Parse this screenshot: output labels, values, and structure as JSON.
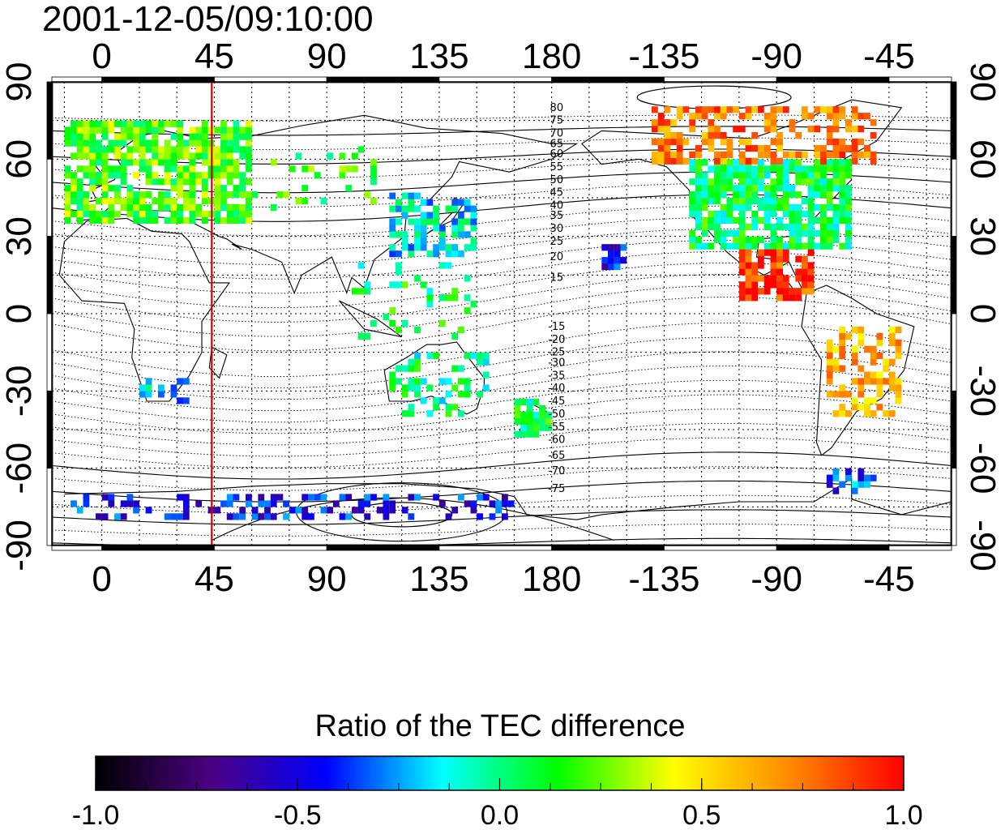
{
  "timestamp": "2001-12-05/09:10:00",
  "colorbar": {
    "title": "Ratio of the TEC difference",
    "range": [
      -1.0,
      1.0
    ],
    "tick_labels": [
      "-1.0",
      "-0.5",
      "0.0",
      "0.5",
      "1.0"
    ],
    "tick_values": [
      -1.0,
      -0.5,
      0.0,
      0.5,
      1.0
    ],
    "colors": [
      "#000000",
      "#4b0082",
      "#0000ff",
      "#00ffff",
      "#00ff00",
      "#ffff00",
      "#ff8c00",
      "#ff0000"
    ]
  },
  "map": {
    "lon_labels": [
      "0",
      "45",
      "90",
      "135",
      "180",
      "-135",
      "-90",
      "-45"
    ],
    "lon_values": [
      0,
      45,
      90,
      135,
      180,
      225,
      270,
      315
    ],
    "lon_range": [
      -20,
      340
    ],
    "lat_labels_left": [
      "90",
      "60",
      "30",
      "0",
      "-30",
      "-60",
      "-90"
    ],
    "lat_labels_right": [
      "90",
      "60",
      "30",
      "0",
      "-30",
      "-60",
      "-90"
    ],
    "lat_values": [
      90,
      60,
      30,
      0,
      -30,
      -60,
      -90
    ],
    "meridian_line": {
      "lon": 44,
      "color": "#cc0000"
    },
    "contour_labels_north": [
      "80",
      "75",
      "70",
      "65",
      "60",
      "55",
      "50",
      "45",
      "40",
      "35",
      "30",
      "25",
      "20",
      "15"
    ],
    "contour_labels_south": [
      "-15",
      "-20",
      "-25",
      "-30",
      "-35",
      "-40",
      "-45",
      "-50",
      "-55",
      "-60",
      "-65",
      "-70",
      "-75"
    ],
    "contour_label_lon": 182,
    "contour_label_lat_north": [
      80,
      75,
      70,
      66,
      62,
      57,
      52,
      47,
      42,
      38,
      33,
      28,
      22,
      14
    ],
    "contour_label_lat_south": [
      -5,
      -10,
      -15,
      -19,
      -24,
      -29,
      -34,
      -39,
      -44,
      -49,
      -55,
      -61,
      -68
    ],
    "data_regions": [
      {
        "name": "europe",
        "lon": [
          -15,
          60
        ],
        "lat": [
          35,
          75
        ],
        "value": 0.2,
        "density": 0.75
      },
      {
        "name": "north-america",
        "lon": [
          235,
          300
        ],
        "lat": [
          25,
          60
        ],
        "value": 0.05,
        "density": 0.8
      },
      {
        "name": "canada-arctic",
        "lon": [
          220,
          310
        ],
        "lat": [
          58,
          80
        ],
        "value": 0.75,
        "density": 0.5
      },
      {
        "name": "central-america",
        "lon": [
          255,
          285
        ],
        "lat": [
          5,
          25
        ],
        "value": 0.9,
        "density": 0.7
      },
      {
        "name": "east-asia",
        "lon": [
          115,
          150
        ],
        "lat": [
          22,
          45
        ],
        "value": -0.15,
        "density": 0.6
      },
      {
        "name": "south-america",
        "lon": [
          290,
          320
        ],
        "lat": [
          -40,
          -5
        ],
        "value": 0.6,
        "density": 0.5
      },
      {
        "name": "australia",
        "lon": [
          115,
          155
        ],
        "lat": [
          -40,
          -15
        ],
        "value": 0.0,
        "density": 0.4
      },
      {
        "name": "new-zealand",
        "lon": [
          165,
          180
        ],
        "lat": [
          -48,
          -35
        ],
        "value": 0.05,
        "density": 0.7
      },
      {
        "name": "antarctic-coast",
        "lon": [
          -15,
          170
        ],
        "lat": [
          -80,
          -70
        ],
        "value": -0.45,
        "density": 0.35
      },
      {
        "name": "pacific-patch",
        "lon": [
          200,
          210
        ],
        "lat": [
          17,
          25
        ],
        "value": -0.45,
        "density": 0.8
      },
      {
        "name": "southeast-asia",
        "lon": [
          100,
          150
        ],
        "lat": [
          -10,
          20
        ],
        "value": 0.05,
        "density": 0.15
      },
      {
        "name": "central-asia",
        "lon": [
          60,
          110
        ],
        "lat": [
          40,
          65
        ],
        "value": 0.15,
        "density": 0.15
      },
      {
        "name": "southern-africa",
        "lon": [
          15,
          35
        ],
        "lat": [
          -35,
          -25
        ],
        "value": -0.2,
        "density": 0.3
      },
      {
        "name": "drake-passage",
        "lon": [
          290,
          310
        ],
        "lat": [
          -70,
          -60
        ],
        "value": -0.35,
        "density": 0.5
      }
    ]
  }
}
